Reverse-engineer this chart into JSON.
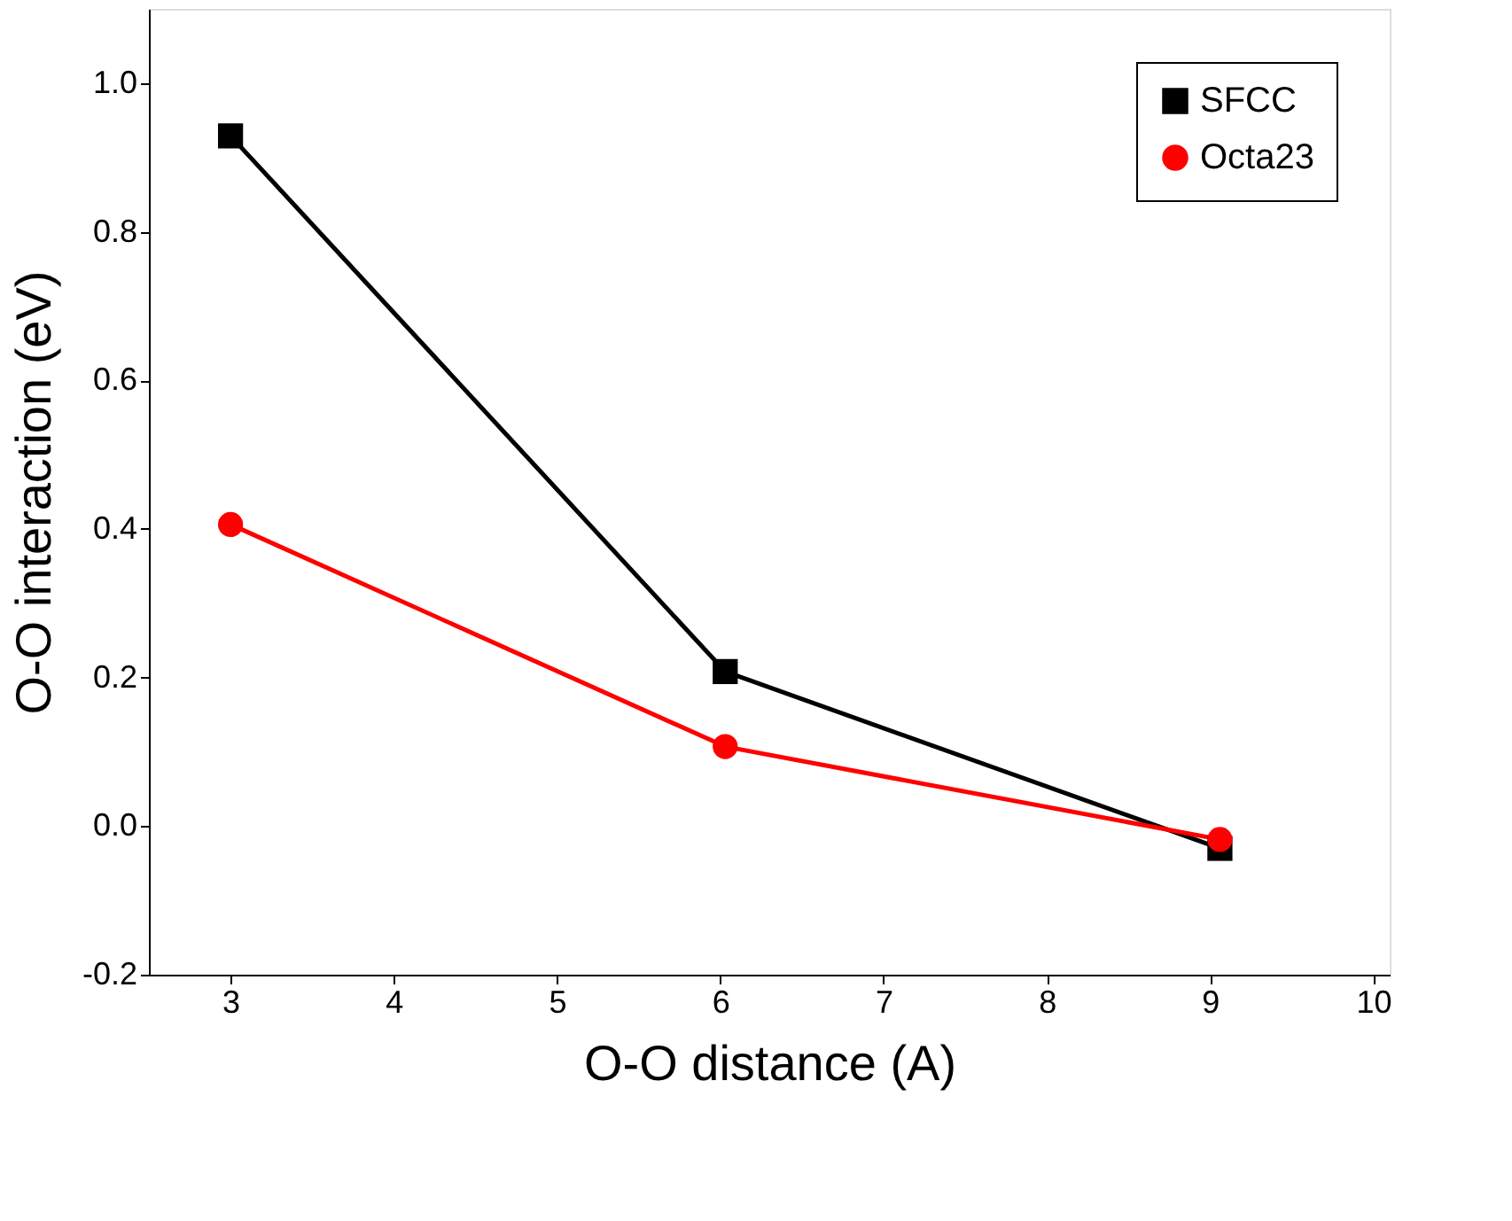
{
  "chart_data": {
    "type": "line",
    "xlabel": "O-O distance (A)",
    "ylabel": "O-O interaction (eV)",
    "xlim": [
      2.5,
      10.1
    ],
    "xticks": [
      3,
      4,
      5,
      6,
      7,
      8,
      9,
      10
    ],
    "ylim": [
      -0.2,
      1.1
    ],
    "yticks": [
      -0.2,
      {
        "value": 0,
        "label": "0.0"
      },
      0.2,
      0.4,
      0.6,
      0.8,
      {
        "value": 1,
        "label": "1.0"
      }
    ],
    "grid": false,
    "legend": "top right",
    "line_style": "solid",
    "series": [
      {
        "name": "SFCC",
        "color": "#000000",
        "marker": "square",
        "x": [
          3.0,
          6.03,
          9.06
        ],
        "values": [
          0.929,
          0.208,
          -0.03
        ]
      },
      {
        "name": "Octa23",
        "color": "#ff0000",
        "marker": "circle",
        "x": [
          3.0,
          6.03,
          9.06
        ],
        "values": [
          0.406,
          0.107,
          -0.018
        ]
      }
    ]
  }
}
